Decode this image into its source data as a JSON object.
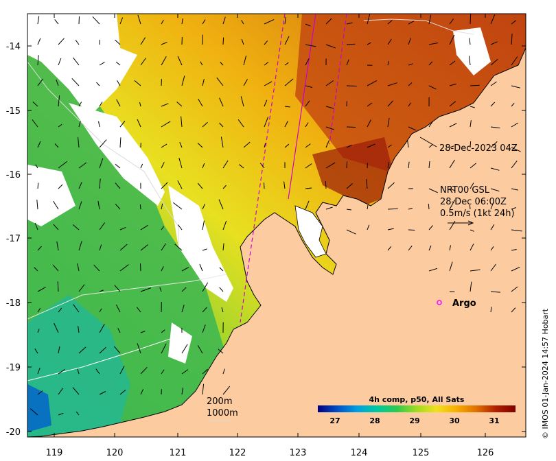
{
  "map": {
    "lon_ticks": [
      "119",
      "120",
      "121",
      "122",
      "123",
      "124",
      "125",
      "126"
    ],
    "lat_ticks": [
      "-14",
      "-15",
      "-16",
      "-17",
      "-18",
      "-19",
      "-20"
    ],
    "colors": {
      "land": "#fccba0",
      "no_data": "#ffffff",
      "track": "#cc00cc",
      "argo_marker": "#ff00ff",
      "contour": "#d9d9d9"
    }
  },
  "annotations": {
    "pass_label": "28-Dec-2023 04Z",
    "current_product": "NRT00 GSL",
    "current_time": "28-Dec 06:00Z",
    "current_scale": "0.5m/s (1kt 24h)",
    "argo_label": "Argo",
    "contour_200": "200m",
    "contour_1000": "1000m"
  },
  "colorbar": {
    "title": "4h comp, p50, All Sats",
    "ticks": [
      "27",
      "28",
      "29",
      "30",
      "31"
    ],
    "range": [
      26.5,
      31.5
    ],
    "palette": [
      "#000080",
      "#0050c8",
      "#00a0e0",
      "#00c8a0",
      "#30c850",
      "#a0dc20",
      "#f0e020",
      "#f8b000",
      "#e07000",
      "#b02000",
      "#800000"
    ]
  },
  "credit": "© IMOS 01-Jan-2024 14:57 Hobart"
}
